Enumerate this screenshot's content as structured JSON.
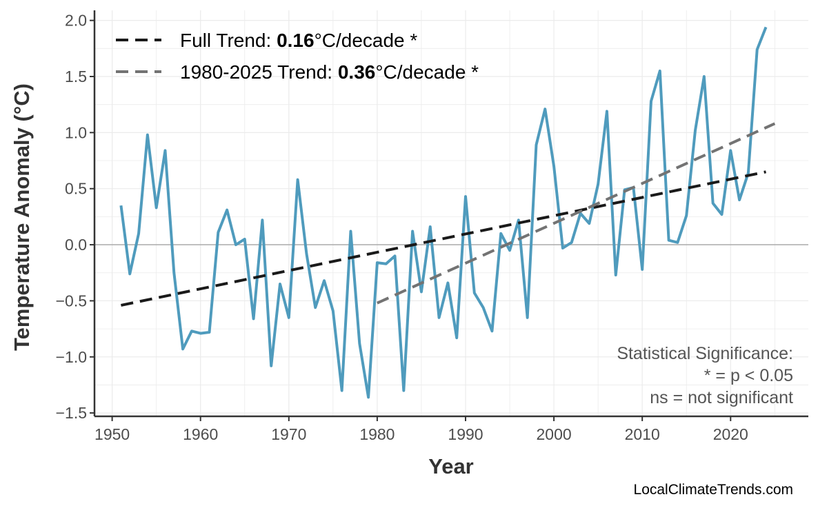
{
  "chart_data": {
    "type": "line",
    "title": "",
    "xlabel": "Year",
    "ylabel": "Temperature Anomaly (°C)",
    "xlim": [
      1948,
      2028.8
    ],
    "ylim": [
      -1.53,
      2.09
    ],
    "xticks": [
      1950,
      1960,
      1970,
      1980,
      1990,
      2000,
      2010,
      2020
    ],
    "yticks": [
      -1.5,
      -1.0,
      -0.5,
      0.0,
      0.5,
      1.0,
      1.5,
      2.0
    ],
    "ytick_labels": [
      "−1.5",
      "−1.0",
      "−0.5",
      "0.0",
      "0.5",
      "1.0",
      "1.5",
      "2.0"
    ],
    "grid": true,
    "zero_line": true,
    "legend_placement": "top-left",
    "colors": {
      "anomaly": "#4f9bbd",
      "full_trend": "#1a1a1a",
      "recent_trend": "#737373",
      "zero_line": "#aaaaaa",
      "grid": "#ebebeb"
    },
    "series": {
      "x": [
        1951,
        1952,
        1953,
        1954,
        1955,
        1956,
        1957,
        1958,
        1959,
        1960,
        1961,
        1962,
        1963,
        1964,
        1965,
        1966,
        1967,
        1968,
        1969,
        1970,
        1971,
        1972,
        1973,
        1974,
        1975,
        1976,
        1977,
        1978,
        1979,
        1980,
        1981,
        1982,
        1983,
        1984,
        1985,
        1986,
        1987,
        1988,
        1989,
        1990,
        1991,
        1992,
        1993,
        1994,
        1995,
        1996,
        1997,
        1998,
        1999,
        2000,
        2001,
        2002,
        2003,
        2004,
        2005,
        2006,
        2007,
        2008,
        2009,
        2010,
        2011,
        2012,
        2013,
        2014,
        2015,
        2016,
        2017,
        2018,
        2019,
        2020,
        2021,
        2022,
        2023,
        2024
      ],
      "y": [
        0.35,
        -0.26,
        0.1,
        0.98,
        0.33,
        0.84,
        -0.25,
        -0.93,
        -0.77,
        -0.79,
        -0.78,
        0.11,
        0.31,
        0.0,
        0.05,
        -0.66,
        0.22,
        -1.08,
        -0.35,
        -0.65,
        0.58,
        -0.08,
        -0.56,
        -0.32,
        -0.59,
        -1.3,
        0.12,
        -0.88,
        -1.36,
        -0.16,
        -0.17,
        -0.1,
        -1.3,
        0.12,
        -0.42,
        0.16,
        -0.65,
        -0.34,
        -0.83,
        0.43,
        -0.43,
        -0.56,
        -0.77,
        0.1,
        -0.05,
        0.22,
        -0.65,
        0.89,
        1.21,
        0.7,
        -0.03,
        0.02,
        0.28,
        0.19,
        0.54,
        1.19,
        -0.27,
        0.49,
        0.51,
        -0.22,
        1.28,
        1.55,
        0.04,
        0.02,
        0.26,
        1.02,
        1.5,
        0.37,
        0.27,
        0.84,
        0.4,
        0.64,
        1.74,
        1.94
      ]
    },
    "trends": [
      {
        "label_prefix": "Full Trend: ",
        "value": "0.16",
        "label_suffix": "°C/decade *",
        "x": [
          1951,
          2024
        ],
        "y": [
          -0.54,
          0.65
        ]
      },
      {
        "label_prefix": "1980-2025 Trend: ",
        "value": "0.36",
        "label_suffix": "°C/decade *",
        "x": [
          1980,
          2025
        ],
        "y": [
          -0.52,
          1.08
        ]
      }
    ],
    "annotation": [
      "Statistical Significance:",
      "* = p < 0.05",
      "ns = not significant"
    ]
  },
  "credit": "LocalClimateTrends.com"
}
